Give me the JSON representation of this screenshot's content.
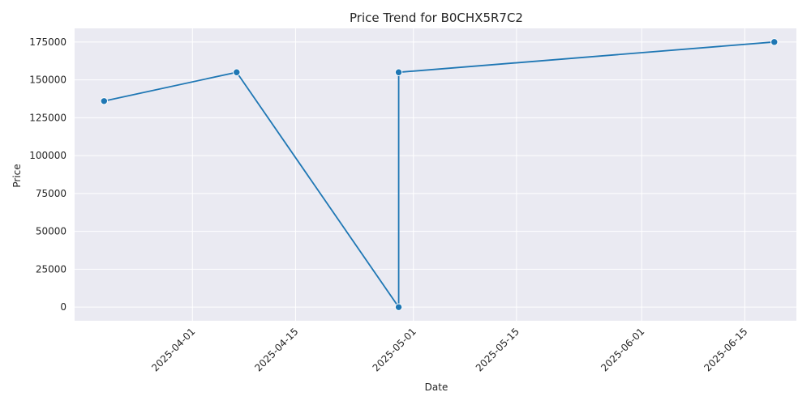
{
  "chart_data": {
    "type": "line",
    "title": "Price Trend for B0CHX5R7C2",
    "xlabel": "Date",
    "ylabel": "Price",
    "x_scale": "date",
    "xlim": [
      "2025-03-16",
      "2025-06-22"
    ],
    "ylim": [
      -9000,
      184000
    ],
    "x_ticks": [
      "2025-04-01",
      "2025-04-15",
      "2025-05-01",
      "2025-05-15",
      "2025-06-01",
      "2025-06-15"
    ],
    "y_ticks": [
      0,
      25000,
      50000,
      75000,
      100000,
      125000,
      150000,
      175000
    ],
    "grid": true,
    "background": "#eaeaf2",
    "series": [
      {
        "color": "#1f77b4",
        "marker": "circle",
        "x": [
          "2025-03-20",
          "2025-04-07",
          "2025-04-29",
          "2025-04-29",
          "2025-06-19"
        ],
        "y": [
          136000,
          155000,
          0,
          155000,
          175000
        ]
      }
    ]
  }
}
